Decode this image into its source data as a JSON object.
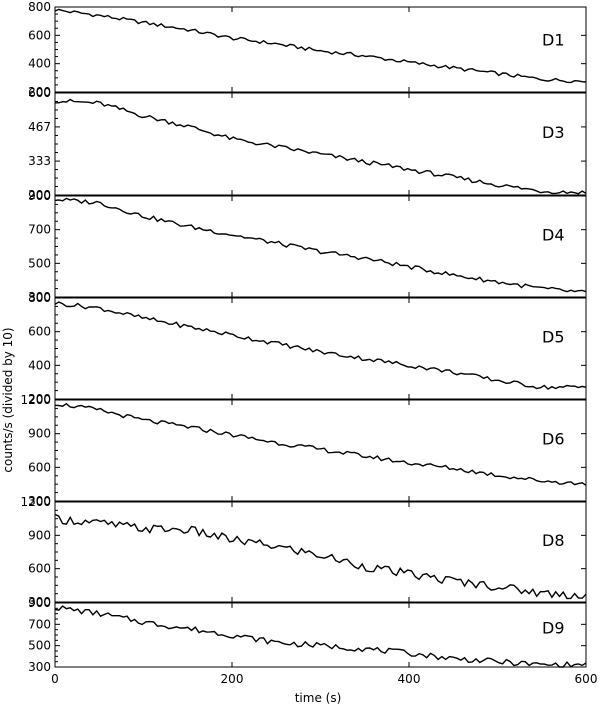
{
  "chart_data": {
    "type": "line",
    "xlabel": "time (s)",
    "ylabel": "counts/s (divided by 10)",
    "xlim": [
      0,
      600
    ],
    "x_ticks": [
      "0",
      "200",
      "400",
      "600"
    ],
    "grid": false,
    "line_color": "#000000",
    "panels": [
      {
        "label": "D1",
        "ylim": [
          200,
          800
        ],
        "y_ticks": [
          "200",
          "400",
          "600",
          "800"
        ],
        "x": [
          0,
          50,
          100,
          150,
          200,
          250,
          300,
          350,
          400,
          450,
          500,
          550,
          600
        ],
        "y": [
          780,
          740,
          690,
          640,
          580,
          540,
          490,
          455,
          410,
          370,
          330,
          290,
          275
        ]
      },
      {
        "label": "D3",
        "ylim": [
          200,
          600
        ],
        "y_ticks": [
          "200",
          "333",
          "467",
          "600"
        ],
        "x": [
          0,
          50,
          100,
          150,
          200,
          250,
          300,
          350,
          400,
          450,
          500,
          550,
          600
        ],
        "y": [
          570,
          560,
          510,
          470,
          420,
          390,
          360,
          330,
          300,
          270,
          240,
          215,
          210
        ]
      },
      {
        "label": "D4",
        "ylim": [
          300,
          900
        ],
        "y_ticks": [
          "300",
          "500",
          "700",
          "900"
        ],
        "x": [
          0,
          50,
          100,
          150,
          200,
          250,
          300,
          350,
          400,
          450,
          500,
          550,
          600
        ],
        "y": [
          880,
          860,
          780,
          720,
          670,
          620,
          570,
          530,
          480,
          430,
          390,
          350,
          325
        ]
      },
      {
        "label": "D5",
        "ylim": [
          200,
          800
        ],
        "y_ticks": [
          "200",
          "400",
          "600",
          "800"
        ],
        "x": [
          0,
          50,
          100,
          150,
          200,
          250,
          300,
          350,
          400,
          450,
          500,
          550,
          600
        ],
        "y": [
          770,
          740,
          680,
          630,
          580,
          530,
          480,
          440,
          400,
          360,
          310,
          270,
          270
        ]
      },
      {
        "label": "D6",
        "ylim": [
          300,
          1200
        ],
        "y_ticks": [
          "300",
          "600",
          "900",
          "1200"
        ],
        "x": [
          0,
          50,
          100,
          150,
          200,
          250,
          300,
          350,
          400,
          450,
          500,
          550,
          600
        ],
        "y": [
          1170,
          1110,
          1020,
          960,
          890,
          820,
          760,
          700,
          640,
          590,
          530,
          480,
          450
        ]
      },
      {
        "label": "D8",
        "ylim": [
          300,
          1200
        ],
        "y_ticks": [
          "300",
          "600",
          "900",
          "1200"
        ],
        "x": [
          0,
          50,
          100,
          150,
          200,
          250,
          300,
          350,
          400,
          450,
          500,
          550,
          600
        ],
        "y": [
          1050,
          1010,
          960,
          950,
          860,
          800,
          720,
          620,
          550,
          490,
          440,
          380,
          360
        ]
      },
      {
        "label": "D9",
        "ylim": [
          300,
          900
        ],
        "y_ticks": [
          "300",
          "500",
          "700",
          "900"
        ],
        "x": [
          0,
          50,
          100,
          150,
          200,
          250,
          300,
          350,
          400,
          450,
          500,
          550,
          600
        ],
        "y": [
          860,
          800,
          720,
          660,
          600,
          530,
          500,
          470,
          430,
          380,
          350,
          320,
          320
        ]
      }
    ]
  }
}
